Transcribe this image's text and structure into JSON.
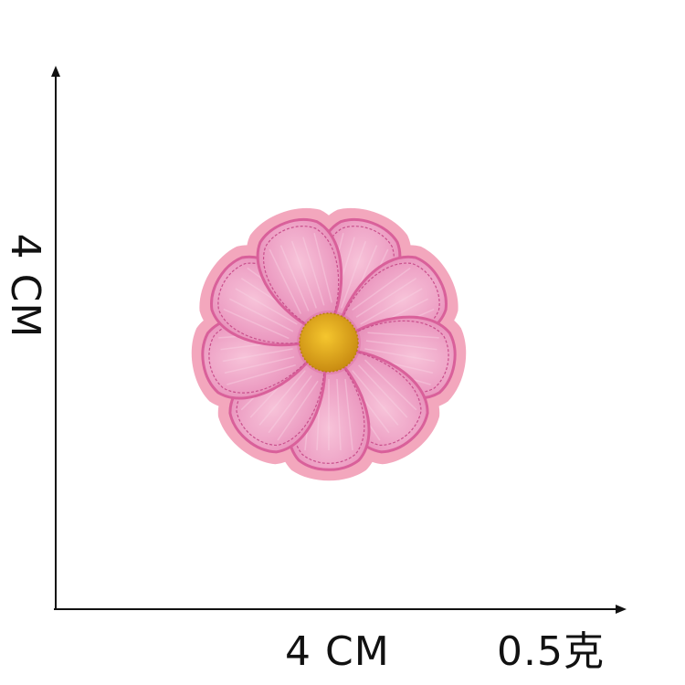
{
  "dimensions": {
    "height_label": "4 CM",
    "width_label": "4 CM",
    "weight_label": "0.5克"
  },
  "product": {
    "icon": "daisy-flower-patch-icon",
    "petal_count": 9
  },
  "colors": {
    "background": "#ffffff",
    "axis": "#111111",
    "felt": "#f3a7bd",
    "petal": "#ea92ba",
    "petal_highlight": "#f7c3d9",
    "stitch": "#d9609a",
    "center": "#eab21f",
    "center_shadow": "#c98c12"
  }
}
